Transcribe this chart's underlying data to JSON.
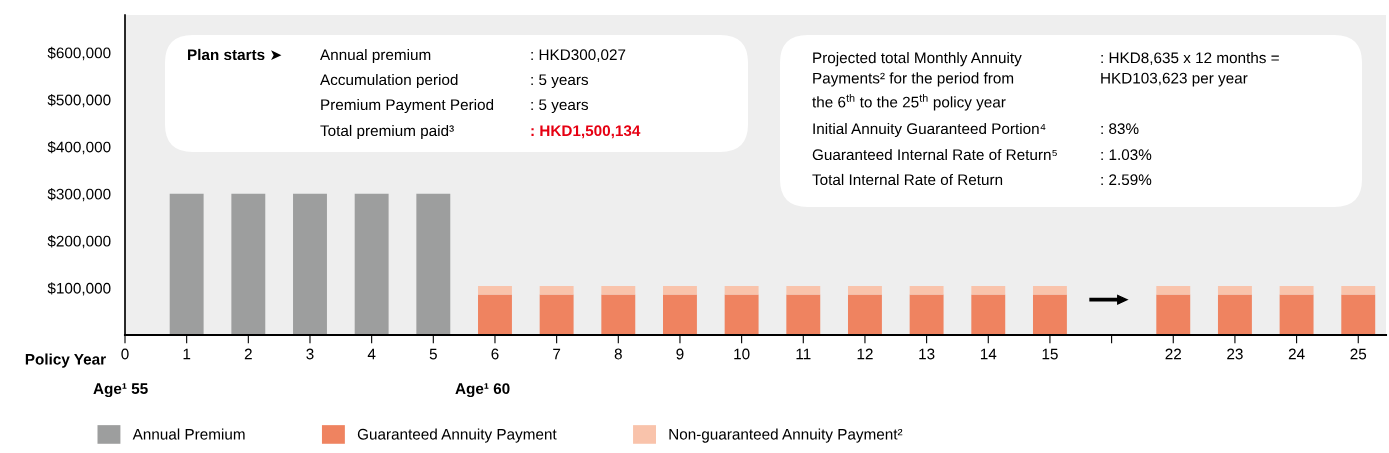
{
  "chart_data": {
    "type": "bar",
    "stacked": true,
    "categories": [
      "0",
      "1",
      "2",
      "3",
      "4",
      "5",
      "6",
      "7",
      "8",
      "9",
      "10",
      "11",
      "12",
      "13",
      "14",
      "15",
      null,
      "22",
      "23",
      "24",
      "25"
    ],
    "series": [
      {
        "name": "Annual Premium",
        "color": "#9d9e9e",
        "values": [
          null,
          300000,
          300000,
          300000,
          300000,
          300000,
          null,
          null,
          null,
          null,
          null,
          null,
          null,
          null,
          null,
          null,
          null,
          null,
          null,
          null,
          null
        ]
      },
      {
        "name": "Guaranteed Annuity Payment",
        "color": "#ef8360",
        "values": [
          null,
          null,
          null,
          null,
          null,
          null,
          86000,
          86000,
          86000,
          86000,
          86000,
          86000,
          86000,
          86000,
          86000,
          86000,
          null,
          86000,
          86000,
          86000,
          86000
        ]
      },
      {
        "name": "Non-guaranteed Annuity Payment²",
        "color": "#f9c3ab",
        "values": [
          null,
          null,
          null,
          null,
          null,
          null,
          18000,
          18000,
          18000,
          18000,
          18000,
          18000,
          18000,
          18000,
          18000,
          18000,
          null,
          18000,
          18000,
          18000,
          18000
        ]
      }
    ],
    "ylim": [
      0,
      680000
    ],
    "yticks": [
      {
        "value": 100000,
        "label": "$100,000"
      },
      {
        "value": 200000,
        "label": "$200,000"
      },
      {
        "value": 300000,
        "label": "$300,000"
      },
      {
        "value": 400000,
        "label": "$400,000"
      },
      {
        "value": 500000,
        "label": "$500,000"
      },
      {
        "value": 600000,
        "label": "$600,000"
      }
    ],
    "xlabel": "Policy Year",
    "legend": "bottom",
    "grid": false,
    "annotations": [
      "Plan starts ➤",
      "Annual premium",
      ": HKD300,027",
      "Accumulation period",
      ": 5 years",
      "Premium Payment Period",
      ": 5 years",
      "Total premium paid³",
      ": HKD1,500,134",
      "Projected total Monthly Annuity\nPayments² for the period from\nthe 6$^{th}$ to the 25$^{th}$ policy year",
      ": HKD8,635 x 12 months =\nHKD103,623 per year",
      "Initial Annuity Guaranteed Portion⁴",
      ": 83%",
      "Guaranteed Internal Rate of Return⁵",
      ": 1.03%",
      "Total Internal Rate of Return",
      ": 2.59%",
      "Age¹ 55",
      "Age¹ 60"
    ]
  }
}
